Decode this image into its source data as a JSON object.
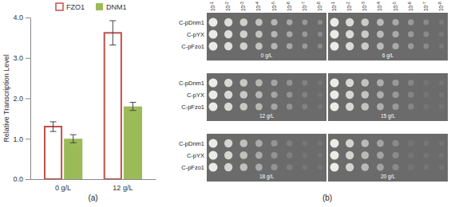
{
  "chart_data": {
    "type": "bar",
    "y_label": "Relative Transcription Level",
    "categories": [
      "0 g/L",
      "12 g/L"
    ],
    "series": [
      {
        "name": "FZO1",
        "color": "#c0504d",
        "marker": "hollow",
        "values": [
          1.3,
          3.62
        ],
        "errors": [
          0.12,
          0.3
        ]
      },
      {
        "name": "DNM1",
        "color": "#9bbb59",
        "marker": "filled",
        "values": [
          1.0,
          1.8
        ],
        "errors": [
          0.1,
          0.1
        ]
      }
    ],
    "ylim": [
      0,
      4
    ],
    "yticks": [
      {
        "value": 0,
        "label": "0.0"
      },
      {
        "value": 1,
        "label": "1.0"
      },
      {
        "value": 2,
        "label": "2.0"
      },
      {
        "value": 3,
        "label": "3.0"
      },
      {
        "value": 4,
        "label": "4.0"
      }
    ],
    "grid": false,
    "legend": "top",
    "annotations": [
      "(a)"
    ]
  },
  "panel_b": {
    "caption": "(b)",
    "dilutions": [
      {
        "base": "10",
        "exponent": "-1"
      },
      {
        "base": "10",
        "exponent": "-2"
      },
      {
        "base": "10",
        "exponent": "-3"
      },
      {
        "base": "10",
        "exponent": "-4"
      },
      {
        "base": "10",
        "exponent": "-5"
      },
      {
        "base": "10",
        "exponent": "-6"
      },
      {
        "base": "10",
        "exponent": "-7"
      },
      {
        "base": "10",
        "exponent": "-8"
      }
    ],
    "strains": [
      "C-pDnm1",
      "C-pYX",
      "C-pFzo1"
    ],
    "plates": [
      [
        "0 g/L",
        "6 g/L"
      ],
      [
        "12 g/L",
        "15 g/L"
      ],
      [
        "18 g/L",
        "20 g/L"
      ]
    ]
  }
}
